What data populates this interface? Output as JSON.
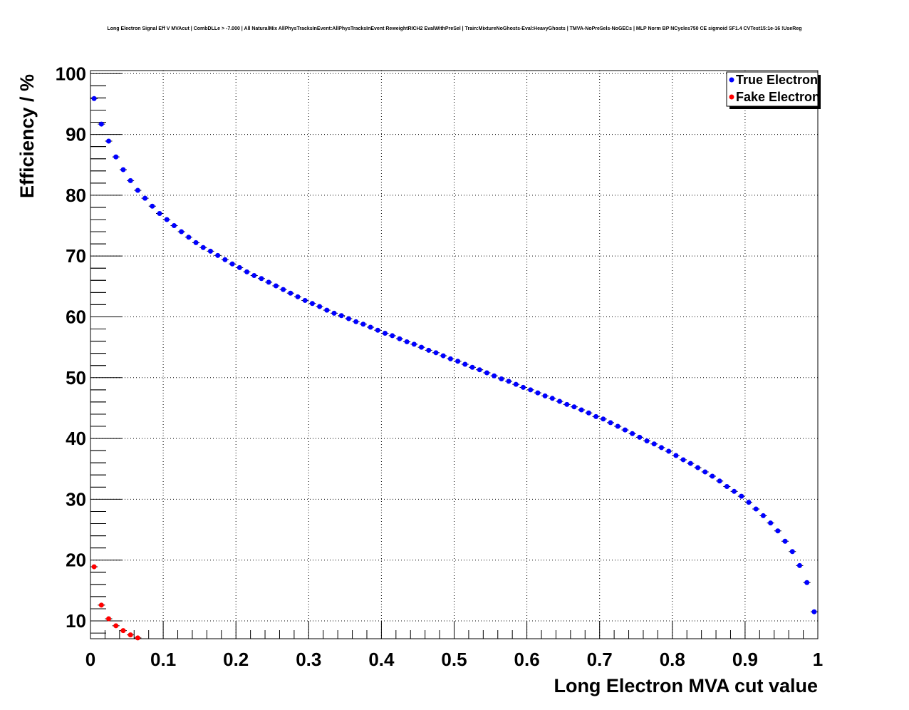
{
  "chart_data": {
    "type": "scatter",
    "title": "Long Electron Signal Eff V MVAcut | CombDLLe > -7.000 | All NaturalMix AllPhysTracksInEvent:AllPhysTracksInEvent ReweightRICH2 EvalWithPreSel | Train:MixtureNoGhosts-Eval:HeavyGhosts | TMVA-NoPreSels-NoGECs | MLP Norm BP NCycles750 CE sigmoid SF1.4 CVTest15:1e-16 !UseReg",
    "xlabel": "Long Electron MVA cut value",
    "ylabel": "Efficiency / %",
    "xlim": [
      0,
      1
    ],
    "ylim": [
      7.07,
      100.5
    ],
    "grid": true,
    "legend_placement": "top-right",
    "xticks": [
      0,
      0.1,
      0.2,
      0.3,
      0.4,
      0.5,
      0.6,
      0.7,
      0.8,
      0.9,
      1
    ],
    "xtick_labels": [
      "0",
      "0.1",
      "0.2",
      "0.3",
      "0.4",
      "0.5",
      "0.6",
      "0.7",
      "0.8",
      "0.9",
      "1"
    ],
    "yticks": [
      10,
      20,
      30,
      40,
      50,
      60,
      70,
      80,
      90,
      100
    ],
    "ytick_labels": [
      "10",
      "20",
      "30",
      "40",
      "50",
      "60",
      "70",
      "80",
      "90",
      "100"
    ],
    "series": [
      {
        "name": "True Electron",
        "color": "#0000ff",
        "x_start": 0.005,
        "x_step": 0.01,
        "values": [
          95.9,
          91.7,
          88.9,
          86.3,
          84.2,
          82.4,
          80.8,
          79.5,
          78.2,
          77.0,
          76.0,
          75.0,
          74.0,
          73.1,
          72.2,
          71.4,
          70.8,
          70.1,
          69.4,
          68.7,
          68.1,
          67.4,
          66.8,
          66.3,
          65.7,
          65.1,
          64.5,
          63.9,
          63.3,
          62.7,
          62.2,
          61.7,
          61.1,
          60.6,
          60.2,
          59.7,
          59.2,
          58.8,
          58.3,
          57.8,
          57.3,
          56.9,
          56.4,
          55.9,
          55.5,
          55.0,
          54.5,
          54.1,
          53.6,
          53.1,
          52.7,
          52.2,
          51.7,
          51.3,
          50.8,
          50.3,
          49.8,
          49.4,
          48.9,
          48.4,
          48.0,
          47.5,
          47.0,
          46.6,
          46.1,
          45.6,
          45.2,
          44.7,
          44.2,
          43.6,
          43.2,
          42.6,
          42.0,
          41.4,
          40.8,
          40.2,
          39.6,
          39.1,
          38.5,
          37.9,
          37.2,
          36.5,
          35.9,
          35.2,
          34.5,
          33.8,
          33.0,
          32.1,
          31.3,
          30.5,
          29.5,
          28.4,
          27.3,
          26.1,
          24.8,
          23.1,
          21.4,
          19.1,
          16.3,
          11.5
        ]
      },
      {
        "name": "Fake Electron",
        "color": "#ff0000",
        "x_start": 0.005,
        "x_step": 0.01,
        "values": [
          18.9,
          12.6,
          10.35,
          9.2,
          8.4,
          7.7,
          7.2
        ]
      }
    ]
  }
}
